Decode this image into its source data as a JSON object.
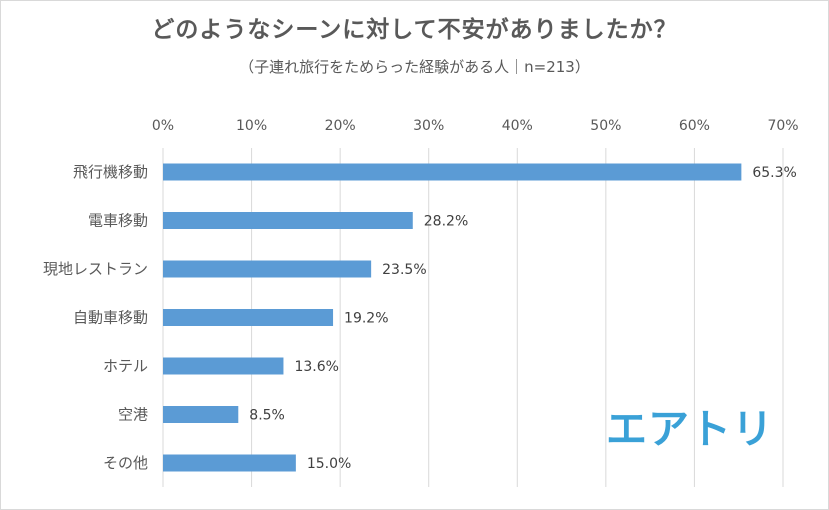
{
  "chart_data": {
    "type": "bar",
    "orientation": "horizontal",
    "title": "どのようなシーンに対して不安がありましたか？",
    "subtitle": "（子連れ旅行をためらった経験がある人｜n=213）",
    "categories": [
      "飛行機移動",
      "電車移動",
      "現地レストラン",
      "自動車移動",
      "ホテル",
      "空港",
      "その他"
    ],
    "values": [
      65.3,
      28.2,
      23.5,
      19.2,
      13.6,
      8.5,
      15.0
    ],
    "data_labels": [
      "65.3%",
      "28.2%",
      "23.5%",
      "19.2%",
      "13.6%",
      "8.5%",
      "15.0%"
    ],
    "x_ticks": [
      0,
      10,
      20,
      30,
      40,
      50,
      60,
      70
    ],
    "x_tick_labels": [
      "0%",
      "10%",
      "20%",
      "30%",
      "40%",
      "50%",
      "60%",
      "70%"
    ],
    "xlim": [
      0,
      70
    ],
    "x_axis_position": "top",
    "grid": true,
    "legend": false,
    "bar_color": "#5b9bd5",
    "grid_color": "#d9d9d9"
  },
  "logo_text": "エアトリ",
  "logo_color": "#3aa1d7"
}
